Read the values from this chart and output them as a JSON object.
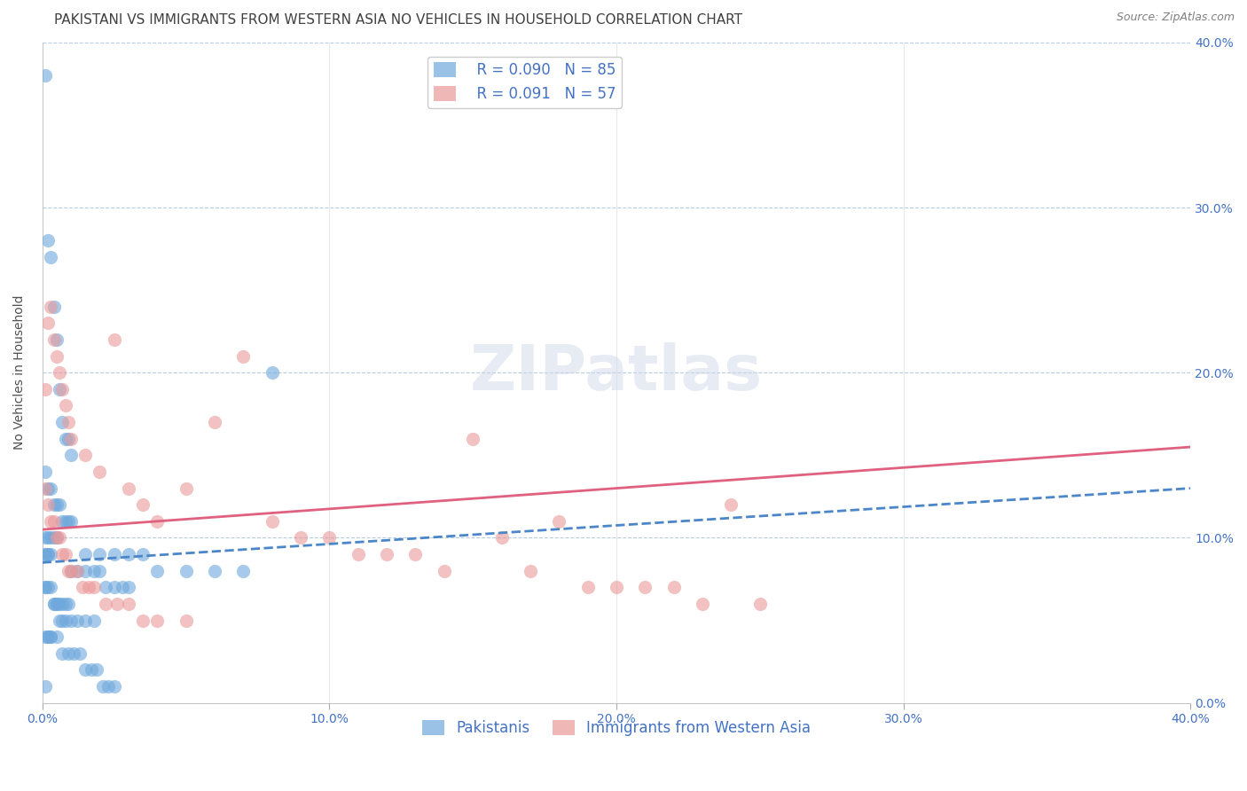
{
  "title": "PAKISTANI VS IMMIGRANTS FROM WESTERN ASIA NO VEHICLES IN HOUSEHOLD CORRELATION CHART",
  "source": "Source: ZipAtlas.com",
  "xlabel": "",
  "ylabel": "No Vehicles in Household",
  "xlim": [
    0.0,
    0.4
  ],
  "ylim": [
    0.0,
    0.4
  ],
  "xticks": [
    0.0,
    0.1,
    0.2,
    0.3,
    0.4
  ],
  "yticks": [
    0.0,
    0.1,
    0.2,
    0.3,
    0.4
  ],
  "xtick_labels": [
    "0.0%",
    "10.0%",
    "20.0%",
    "30.0%",
    "40.0%"
  ],
  "ytick_labels": [
    "0.0%",
    "10.0%",
    "20.0%",
    "30.0%",
    "40.0%"
  ],
  "legend_R1": "R = 0.090",
  "legend_N1": "N = 85",
  "legend_R2": "R = 0.091",
  "legend_N2": "N = 57",
  "color_blue": "#6fa8dc",
  "color_pink": "#ea9999",
  "color_trendline_blue": "#4a86c8",
  "color_trendline_pink": "#e06080",
  "color_axis_label": "#4472c4",
  "color_title": "#404040",
  "color_source": "#808080",
  "color_grid": "#b8cce4",
  "background_color": "#ffffff",
  "pakistanis_x": [
    0.001,
    0.002,
    0.003,
    0.004,
    0.005,
    0.006,
    0.007,
    0.008,
    0.009,
    0.01,
    0.001,
    0.002,
    0.003,
    0.004,
    0.005,
    0.006,
    0.007,
    0.008,
    0.009,
    0.01,
    0.001,
    0.002,
    0.003,
    0.004,
    0.005,
    0.001,
    0.002,
    0.003,
    0.001,
    0.002,
    0.015,
    0.02,
    0.025,
    0.03,
    0.035,
    0.04,
    0.05,
    0.06,
    0.07,
    0.08,
    0.01,
    0.012,
    0.015,
    0.018,
    0.02,
    0.022,
    0.025,
    0.028,
    0.03,
    0.001,
    0.001,
    0.002,
    0.003,
    0.004,
    0.005,
    0.006,
    0.007,
    0.008,
    0.009,
    0.004,
    0.005,
    0.006,
    0.007,
    0.008,
    0.01,
    0.012,
    0.015,
    0.018,
    0.002,
    0.003,
    0.001,
    0.002,
    0.003,
    0.005,
    0.007,
    0.009,
    0.011,
    0.013,
    0.015,
    0.017,
    0.019,
    0.021,
    0.023,
    0.025,
    0.001
  ],
  "pakistanis_y": [
    0.38,
    0.28,
    0.27,
    0.24,
    0.22,
    0.19,
    0.17,
    0.16,
    0.16,
    0.15,
    0.14,
    0.13,
    0.13,
    0.12,
    0.12,
    0.12,
    0.11,
    0.11,
    0.11,
    0.11,
    0.1,
    0.1,
    0.1,
    0.1,
    0.1,
    0.09,
    0.09,
    0.09,
    0.09,
    0.09,
    0.09,
    0.09,
    0.09,
    0.09,
    0.09,
    0.08,
    0.08,
    0.08,
    0.08,
    0.2,
    0.08,
    0.08,
    0.08,
    0.08,
    0.08,
    0.07,
    0.07,
    0.07,
    0.07,
    0.07,
    0.07,
    0.07,
    0.07,
    0.06,
    0.06,
    0.06,
    0.06,
    0.06,
    0.06,
    0.06,
    0.06,
    0.05,
    0.05,
    0.05,
    0.05,
    0.05,
    0.05,
    0.05,
    0.04,
    0.04,
    0.04,
    0.04,
    0.04,
    0.04,
    0.03,
    0.03,
    0.03,
    0.03,
    0.02,
    0.02,
    0.02,
    0.01,
    0.01,
    0.01,
    0.01
  ],
  "western_asia_x": [
    0.001,
    0.002,
    0.003,
    0.004,
    0.005,
    0.006,
    0.007,
    0.008,
    0.009,
    0.01,
    0.015,
    0.02,
    0.025,
    0.03,
    0.035,
    0.04,
    0.05,
    0.06,
    0.07,
    0.08,
    0.09,
    0.1,
    0.11,
    0.12,
    0.13,
    0.14,
    0.15,
    0.16,
    0.17,
    0.18,
    0.19,
    0.2,
    0.21,
    0.22,
    0.23,
    0.24,
    0.25,
    0.001,
    0.002,
    0.003,
    0.004,
    0.005,
    0.006,
    0.007,
    0.008,
    0.009,
    0.01,
    0.012,
    0.014,
    0.016,
    0.018,
    0.022,
    0.026,
    0.03,
    0.035,
    0.04,
    0.05
  ],
  "western_asia_y": [
    0.19,
    0.23,
    0.24,
    0.22,
    0.21,
    0.2,
    0.19,
    0.18,
    0.17,
    0.16,
    0.15,
    0.14,
    0.22,
    0.13,
    0.12,
    0.11,
    0.13,
    0.17,
    0.21,
    0.11,
    0.1,
    0.1,
    0.09,
    0.09,
    0.09,
    0.08,
    0.16,
    0.1,
    0.08,
    0.11,
    0.07,
    0.07,
    0.07,
    0.07,
    0.06,
    0.12,
    0.06,
    0.13,
    0.12,
    0.11,
    0.11,
    0.1,
    0.1,
    0.09,
    0.09,
    0.08,
    0.08,
    0.08,
    0.07,
    0.07,
    0.07,
    0.06,
    0.06,
    0.06,
    0.05,
    0.05,
    0.05
  ],
  "pakistani_trend_x": [
    0.0,
    0.4
  ],
  "pakistani_trend_y": [
    0.085,
    0.13
  ],
  "western_asia_trend_x": [
    0.0,
    0.4
  ],
  "western_asia_trend_y": [
    0.105,
    0.155
  ],
  "title_fontsize": 11,
  "label_fontsize": 10,
  "tick_fontsize": 10,
  "legend_fontsize": 12,
  "source_fontsize": 9
}
